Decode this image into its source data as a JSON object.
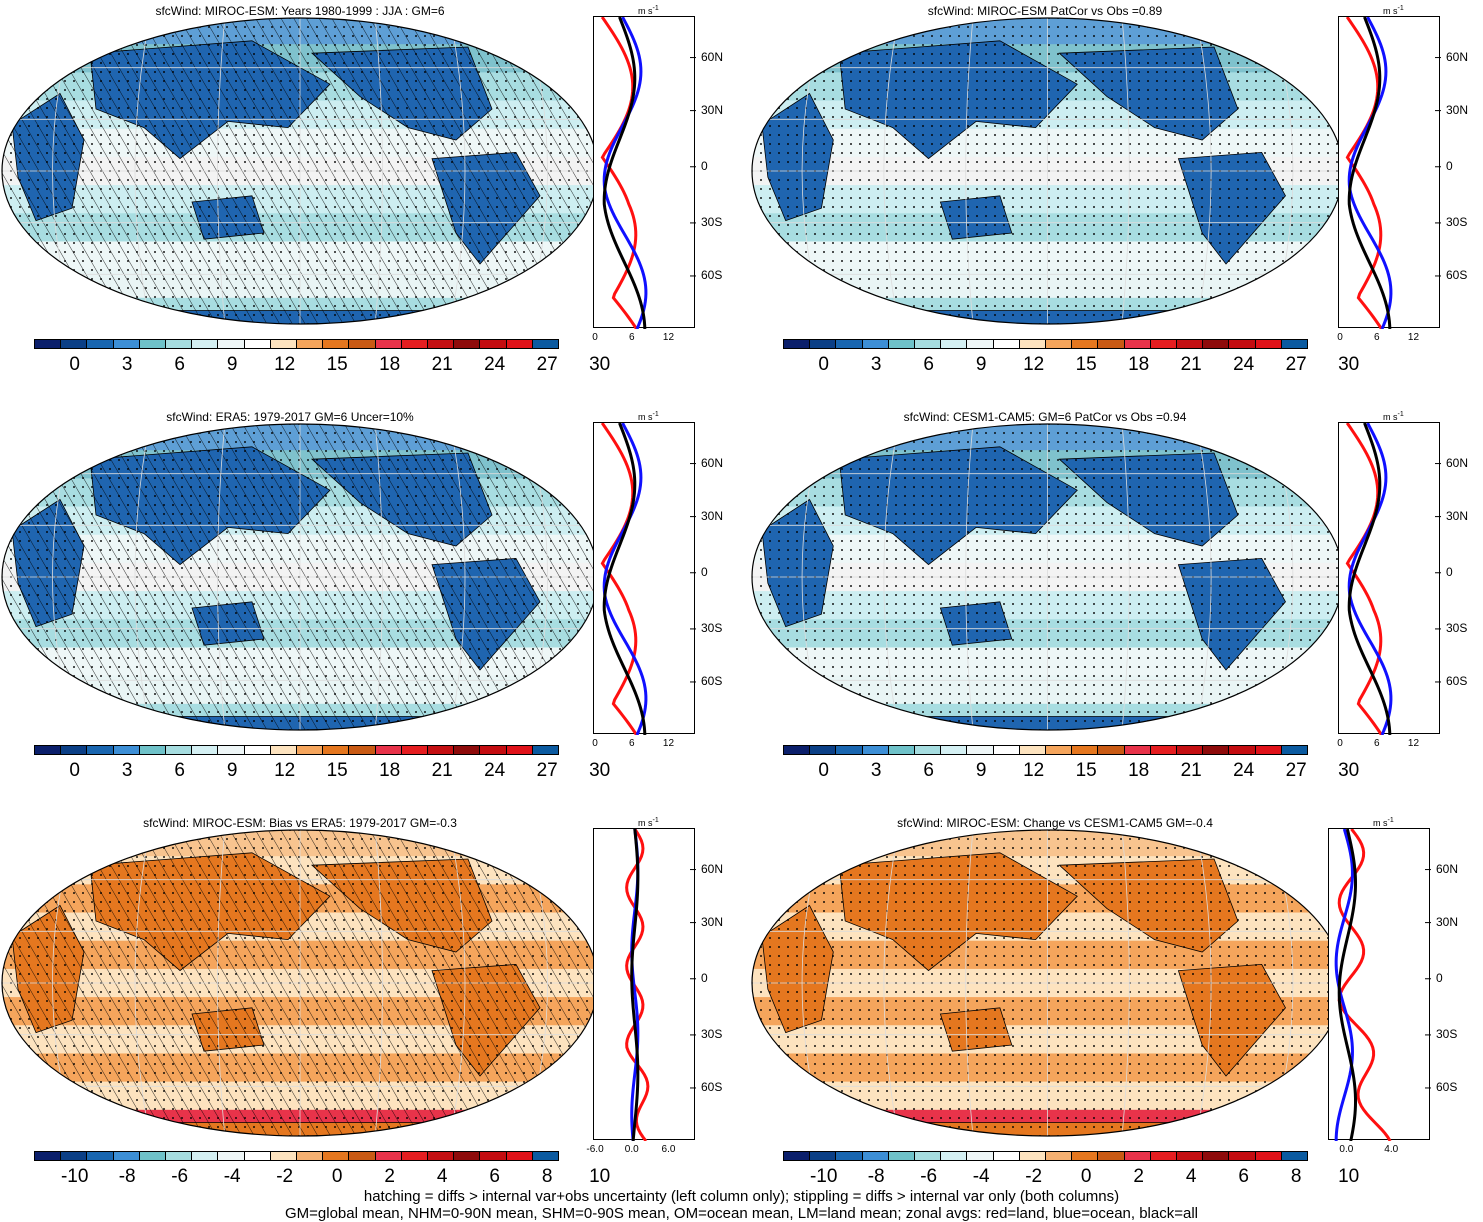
{
  "palettes": {
    "abs": [
      "#0b1f6b",
      "#0b3f86",
      "#1966b0",
      "#3d8fd6",
      "#6fc2c9",
      "#a6dde0",
      "#d4f0f3",
      "#eef6f7",
      "#ffffff",
      "#fde3bf",
      "#f5a55c",
      "#e5771f",
      "#c95a14",
      "#e8334a",
      "#e51d20",
      "#c40f12",
      "#8e0b0b",
      "#c40c10",
      "#e01219",
      "#0b5aa0"
    ],
    "diff": [
      "#0b1f6b",
      "#0b3f86",
      "#1966b0",
      "#3d8fd6",
      "#6fc2c9",
      "#a6dde0",
      "#d4f0f3",
      "#eef6f7",
      "#ffffff",
      "#fde3bf",
      "#f5b071",
      "#e5771f",
      "#c95a14",
      "#e8334a",
      "#e51d20",
      "#c40f12",
      "#8e0b0b",
      "#c40c10",
      "#e01219",
      "#0b5aa0"
    ]
  },
  "colorbar_abs_ticks": [
    "0",
    "3",
    "6",
    "9",
    "12",
    "15",
    "18",
    "21",
    "24",
    "27",
    "30"
  ],
  "colorbar_diff_ticks": [
    "-10",
    "-8",
    "-6",
    "-4",
    "-2",
    "0",
    "2",
    "4",
    "6",
    "8",
    "10"
  ],
  "lat_ticks": [
    "60N",
    "30N",
    "0",
    "30S",
    "60S"
  ],
  "unit": "m s",
  "unit_sup": "-1",
  "panels": [
    {
      "id": "p1",
      "title": "sfcWind: MIROC-ESM: Years 1980-1999 : JJA : GM=6",
      "fill": "abs",
      "x_ticks": [
        "0",
        "6",
        "12"
      ],
      "hatch": true,
      "stipple": true
    },
    {
      "id": "p2",
      "title": "sfcWind: MIROC-ESM PatCor vs Obs =0.89",
      "fill": "abs",
      "x_ticks": [
        "0",
        "6",
        "12"
      ],
      "hatch": false,
      "stipple": true
    },
    {
      "id": "p3",
      "title": "sfcWind: ERA5: 1979-2017 GM=6 Uncer=10%",
      "fill": "abs",
      "x_ticks": [
        "0",
        "6",
        "12"
      ],
      "hatch": true,
      "stipple": true
    },
    {
      "id": "p4",
      "title": "sfcWind: CESM1-CAM5: GM=6 PatCor vs Obs =0.94",
      "fill": "abs",
      "x_ticks": [
        "0",
        "6",
        "12"
      ],
      "hatch": false,
      "stipple": true
    },
    {
      "id": "p5",
      "title": "sfcWind: MIROC-ESM: Bias vs ERA5: 1979-2017 GM=-0.3",
      "fill": "diff",
      "x_ticks": [
        "-6.0",
        "0.0",
        "6.0"
      ],
      "hatch": true,
      "stipple": true
    },
    {
      "id": "p6",
      "title": "sfcWind: MIROC-ESM: Change vs CESM1-CAM5 GM=-0.4",
      "fill": "diff",
      "x_ticks": [
        "0.0",
        "4.0"
      ],
      "hatch": false,
      "stipple": true
    }
  ],
  "footer": {
    "line1": "hatching = diffs > internal var+obs uncertainty (left column only); stippling = diffs > internal var only (both columns)",
    "line2": "GM=global mean, NHM=0-90N mean, SHM=0-90S mean, OM=ocean mean, LM=land mean; zonal avgs: red=land, blue=ocean, black=all"
  }
}
